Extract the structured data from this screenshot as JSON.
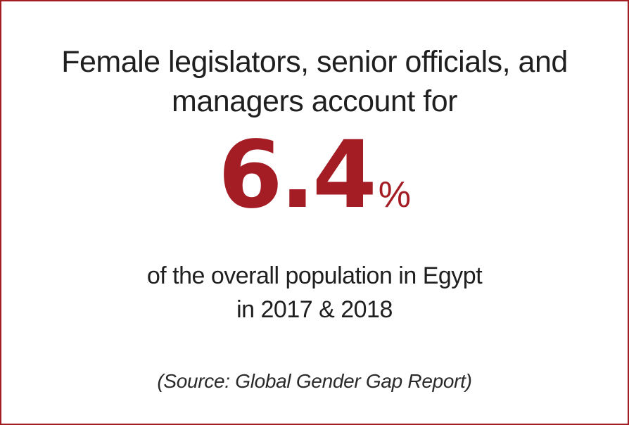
{
  "headline": {
    "line1": "Female legislators, senior officials, and",
    "line2": "managers account for"
  },
  "stat": {
    "value": "6.4",
    "unit": "%",
    "accent_color": "#a51d24"
  },
  "subline": {
    "line1": "of the overall population in Egypt",
    "line2": "in 2017 & 2018"
  },
  "source": {
    "text": "(Source: Global Gender Gap Report)"
  },
  "frame": {
    "border_color": "#a51d24"
  }
}
